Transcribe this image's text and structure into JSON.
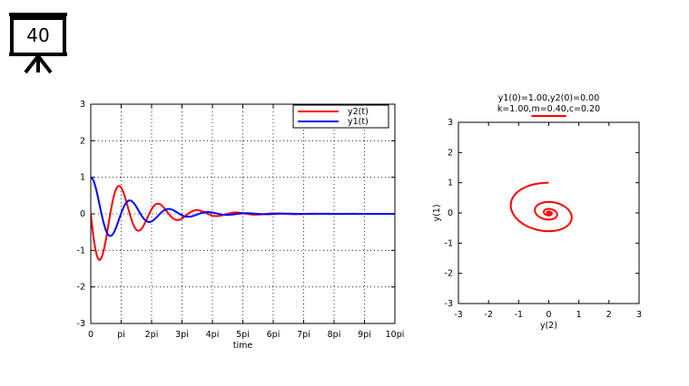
{
  "slide": {
    "number": "40",
    "icon": "projector-screen-icon"
  },
  "chart_data": [
    {
      "type": "line",
      "title": "",
      "xlabel": "time",
      "ylabel": "",
      "xlim": [
        0,
        31.416
      ],
      "ylim": [
        -3,
        3
      ],
      "xticks": [
        "0",
        "pi",
        "2pi",
        "3pi",
        "4pi",
        "5pi",
        "6pi",
        "7pi",
        "8pi",
        "9pi",
        "10pi"
      ],
      "yticks": [
        "-3",
        "-2",
        "-1",
        "0",
        "1",
        "2",
        "3"
      ],
      "grid": true,
      "legend_position": "top-right",
      "series": [
        {
          "name": "y2(t)",
          "color": "#ff0000",
          "model": {
            "k": 1.0,
            "m": 0.4,
            "c": 0.2,
            "y1_0": 1.0,
            "y2_0": 0.0,
            "component": "y2"
          }
        },
        {
          "name": "y1(t)",
          "color": "#0000ff",
          "model": {
            "k": 1.0,
            "m": 0.4,
            "c": 0.2,
            "y1_0": 1.0,
            "y2_0": 0.0,
            "component": "y1"
          }
        }
      ]
    },
    {
      "type": "line",
      "title_lines": [
        "y1(0)=1.00,y2(0)=0.00",
        "k=1.00,m=0.40,c=0.20"
      ],
      "xlabel": "y(2)",
      "ylabel": "y(1)",
      "xlim": [
        -3,
        3
      ],
      "ylim": [
        -3,
        3
      ],
      "xticks": [
        "-3",
        "-2",
        "-1",
        "0",
        "1",
        "2",
        "3"
      ],
      "yticks": [
        "-3",
        "-2",
        "-1",
        "0",
        "1",
        "2",
        "3"
      ],
      "grid": false,
      "series": [
        {
          "name": "",
          "color": "#ff0000",
          "model": {
            "k": 1.0,
            "m": 0.4,
            "c": 0.2,
            "y1_0": 1.0,
            "y2_0": 0.0,
            "component": "phase"
          }
        }
      ],
      "annotation": {
        "type": "underline",
        "color": "#ff0000",
        "under": "m=0.40"
      }
    }
  ]
}
